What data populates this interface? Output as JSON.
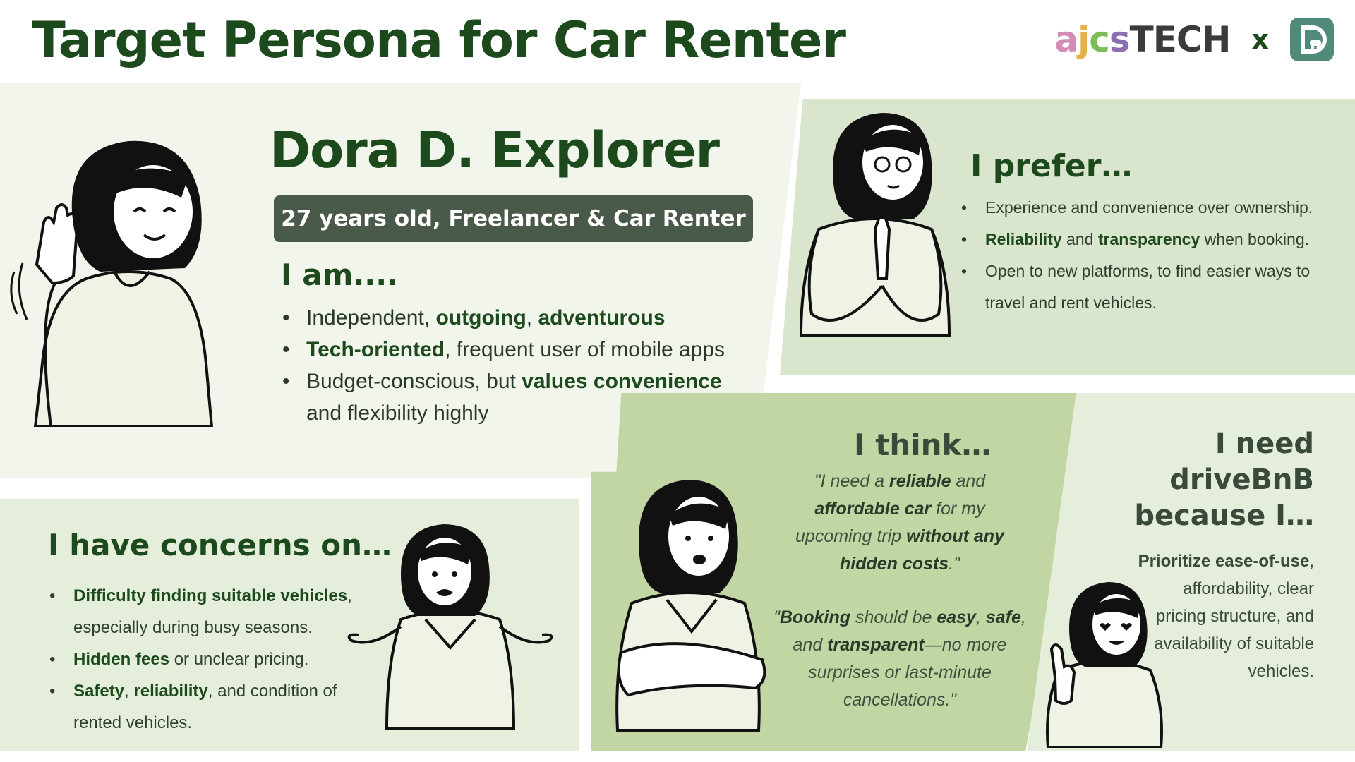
{
  "header": {
    "title": "Target Persona for Car Renter",
    "logo": {
      "brand_parts": [
        "a",
        "j",
        "c",
        "s",
        "TECH"
      ],
      "separator": "x",
      "partner_icon": "d-car-logo-icon"
    }
  },
  "persona": {
    "name": "Dora D. Explorer",
    "details": "27 years old,  Freelancer & Car  Renter"
  },
  "i_am": {
    "heading": "I am....",
    "items": [
      {
        "segments": [
          {
            "t": "Independent, ",
            "b": false
          },
          {
            "t": "outgoing",
            "b": true
          },
          {
            "t": ", ",
            "b": false
          },
          {
            "t": "adventurous",
            "b": true
          }
        ]
      },
      {
        "segments": [
          {
            "t": "Tech-oriented",
            "b": true
          },
          {
            "t": ", frequent user of mobile apps",
            "b": false
          }
        ]
      },
      {
        "segments": [
          {
            "t": "Budget-conscious, but ",
            "b": false
          },
          {
            "t": "values convenience",
            "b": true
          },
          {
            "t": " and flexibility highly",
            "b": false
          }
        ]
      }
    ]
  },
  "i_prefer": {
    "heading": "I prefer…",
    "items": [
      {
        "segments": [
          {
            "t": "Experience and convenience over ownership.",
            "b": false
          }
        ]
      },
      {
        "segments": [
          {
            "t": "Reliability",
            "b": true
          },
          {
            "t": " and ",
            "b": false
          },
          {
            "t": "transparency",
            "b": true
          },
          {
            "t": " when booking.",
            "b": false
          }
        ]
      },
      {
        "segments": [
          {
            "t": "Open to new platforms, to find easier ways to travel and rent vehicles.",
            "b": false
          }
        ]
      }
    ]
  },
  "concerns": {
    "heading": "I have concerns on…",
    "items": [
      {
        "segments": [
          {
            "t": "Difficulty finding suitable vehicles",
            "b": true
          },
          {
            "t": ", especially during busy seasons.",
            "b": false
          }
        ]
      },
      {
        "segments": [
          {
            "t": "Hidden fees",
            "b": true
          },
          {
            "t": " or unclear pricing.",
            "b": false
          }
        ]
      },
      {
        "segments": [
          {
            "t": "Safety",
            "b": true
          },
          {
            "t": ", ",
            "b": false
          },
          {
            "t": "reliability",
            "b": true
          },
          {
            "t": ", and condition of rented vehicles.",
            "b": false
          }
        ]
      }
    ]
  },
  "i_think": {
    "heading": "I think…",
    "quotes": [
      {
        "segments": [
          {
            "t": "\"I need a ",
            "b": false
          },
          {
            "t": "reliable",
            "b": true
          },
          {
            "t": " and ",
            "b": false
          },
          {
            "t": "affordable car",
            "b": true
          },
          {
            "t": " for my upcoming trip ",
            "b": false
          },
          {
            "t": "without any hidden costs",
            "b": true
          },
          {
            "t": ".\"",
            "b": false
          }
        ]
      },
      {
        "segments": [
          {
            "t": "\"",
            "b": false
          },
          {
            "t": "Booking",
            "b": true
          },
          {
            "t": " should be ",
            "b": false
          },
          {
            "t": "easy",
            "b": true
          },
          {
            "t": ", ",
            "b": false
          },
          {
            "t": "safe",
            "b": true
          },
          {
            "t": ", and ",
            "b": false
          },
          {
            "t": "transparent",
            "b": true
          },
          {
            "t": "—no more surprises or last-minute cancellations.\"",
            "b": false
          }
        ]
      }
    ]
  },
  "i_need": {
    "heading": "I need driveBnB because I…",
    "segments": [
      {
        "t": "Prioritize ease-of-use",
        "b": true
      },
      {
        "t": ", affordability, clear pricing structure, and availability of suitable vehicles.",
        "b": false
      }
    ]
  },
  "colors": {
    "title_green": "#1d4a1d",
    "pill_bg": "#4a5a4a",
    "panel_light": "#f1f5ec",
    "panel_mid": "#d9e6cd",
    "panel_dark": "#c2d6a4",
    "logo_teal": "#4f8a7b"
  },
  "illustrations": [
    "waving-woman-icon",
    "praying-woman-icon",
    "shrugging-woman-icon",
    "arms-crossed-woman-icon",
    "thumbs-up-woman-icon"
  ]
}
